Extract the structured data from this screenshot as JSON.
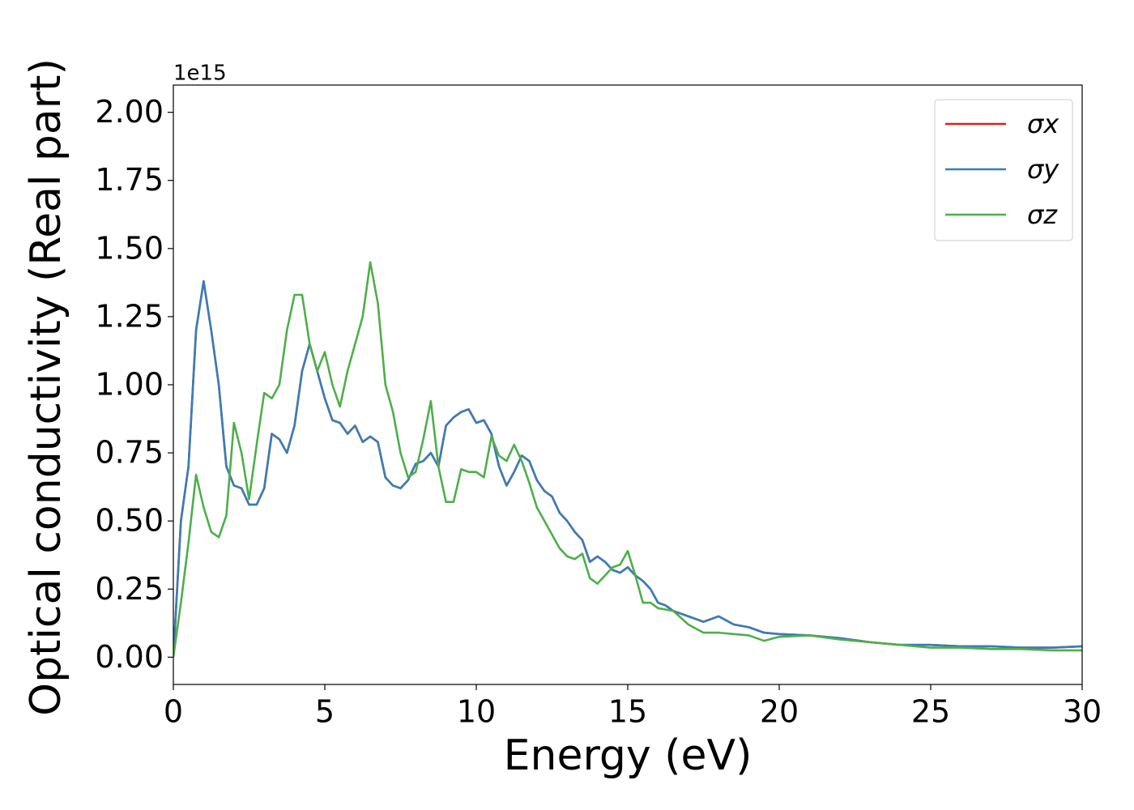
{
  "chart_data": {
    "type": "line",
    "xlabel": "Energy (eV)",
    "ylabel": "Optical conductivity (Real part)",
    "y_offset_label": "1e15",
    "xlim": [
      0,
      30
    ],
    "ylim": [
      -0.1,
      2.1
    ],
    "xticks": [
      0,
      5,
      10,
      15,
      20,
      25,
      30
    ],
    "yticks": [
      {
        "value": 0,
        "label": "0.00"
      },
      {
        "value": 0.25,
        "label": "0.25"
      },
      {
        "value": 0.5,
        "label": "0.50"
      },
      {
        "value": 0.75,
        "label": "0.75"
      },
      {
        "value": 1,
        "label": "1.00"
      },
      {
        "value": 1.25,
        "label": "1.25"
      },
      {
        "value": 1.5,
        "label": "1.50"
      },
      {
        "value": 1.75,
        "label": "1.75"
      },
      {
        "value": 2,
        "label": "2.00"
      }
    ],
    "legend": "upper right",
    "grid": false,
    "x": [
      0,
      0.25,
      0.5,
      0.75,
      1,
      1.25,
      1.5,
      1.75,
      2,
      2.25,
      2.5,
      2.75,
      3,
      3.25,
      3.5,
      3.75,
      4,
      4.25,
      4.5,
      4.75,
      5,
      5.25,
      5.5,
      5.75,
      6,
      6.25,
      6.5,
      6.75,
      7,
      7.25,
      7.5,
      7.75,
      8,
      8.25,
      8.5,
      8.75,
      9,
      9.25,
      9.5,
      9.75,
      10,
      10.25,
      10.5,
      10.75,
      11,
      11.25,
      11.5,
      11.75,
      12,
      12.25,
      12.5,
      12.75,
      13,
      13.25,
      13.5,
      13.75,
      14,
      14.25,
      14.5,
      14.75,
      15,
      15.25,
      15.5,
      15.75,
      16,
      16.25,
      16.5,
      17,
      17.5,
      18,
      18.5,
      19,
      19.5,
      20,
      21,
      22,
      23,
      24,
      25,
      26,
      27,
      28,
      29,
      30
    ],
    "series": [
      {
        "name": "σx",
        "color": "#e41a1c",
        "values": [
          0,
          0.5,
          0.7,
          1.2,
          1.38,
          1.2,
          1.0,
          0.7,
          0.63,
          0.62,
          0.56,
          0.56,
          0.62,
          0.82,
          0.8,
          0.75,
          0.85,
          1.05,
          1.15,
          1.05,
          0.95,
          0.87,
          0.86,
          0.82,
          0.85,
          0.79,
          0.81,
          0.79,
          0.66,
          0.63,
          0.62,
          0.65,
          0.71,
          0.72,
          0.75,
          0.7,
          0.85,
          0.88,
          0.9,
          0.91,
          0.86,
          0.87,
          0.82,
          0.7,
          0.63,
          0.68,
          0.74,
          0.72,
          0.65,
          0.61,
          0.59,
          0.53,
          0.5,
          0.46,
          0.43,
          0.35,
          0.37,
          0.35,
          0.32,
          0.31,
          0.33,
          0.3,
          0.28,
          0.25,
          0.2,
          0.19,
          0.17,
          0.15,
          0.13,
          0.15,
          0.12,
          0.11,
          0.09,
          0.085,
          0.08,
          0.07,
          0.055,
          0.045,
          0.045,
          0.04,
          0.04,
          0.035,
          0.035,
          0.04
        ]
      },
      {
        "name": "σy",
        "color": "#377eb8",
        "values": [
          0,
          0.5,
          0.7,
          1.2,
          1.38,
          1.2,
          1.0,
          0.7,
          0.63,
          0.62,
          0.56,
          0.56,
          0.62,
          0.82,
          0.8,
          0.75,
          0.85,
          1.05,
          1.15,
          1.05,
          0.95,
          0.87,
          0.86,
          0.82,
          0.85,
          0.79,
          0.81,
          0.79,
          0.66,
          0.63,
          0.62,
          0.65,
          0.71,
          0.72,
          0.75,
          0.7,
          0.85,
          0.88,
          0.9,
          0.91,
          0.86,
          0.87,
          0.82,
          0.7,
          0.63,
          0.68,
          0.74,
          0.72,
          0.65,
          0.61,
          0.59,
          0.53,
          0.5,
          0.46,
          0.43,
          0.35,
          0.37,
          0.35,
          0.32,
          0.31,
          0.33,
          0.3,
          0.28,
          0.25,
          0.2,
          0.19,
          0.17,
          0.15,
          0.13,
          0.15,
          0.12,
          0.11,
          0.09,
          0.085,
          0.08,
          0.07,
          0.055,
          0.045,
          0.045,
          0.04,
          0.04,
          0.035,
          0.035,
          0.04
        ]
      },
      {
        "name": "σz",
        "color": "#4daf4a",
        "values": [
          0,
          0.2,
          0.42,
          0.67,
          0.55,
          0.46,
          0.44,
          0.52,
          0.86,
          0.75,
          0.58,
          0.78,
          0.97,
          0.95,
          1.0,
          1.2,
          1.33,
          1.33,
          1.15,
          1.05,
          1.12,
          1.0,
          0.92,
          1.05,
          1.15,
          1.25,
          1.45,
          1.3,
          1.0,
          0.9,
          0.75,
          0.66,
          0.68,
          0.8,
          0.94,
          0.7,
          0.57,
          0.57,
          0.69,
          0.68,
          0.68,
          0.66,
          0.81,
          0.74,
          0.72,
          0.78,
          0.72,
          0.64,
          0.55,
          0.5,
          0.45,
          0.4,
          0.37,
          0.36,
          0.38,
          0.29,
          0.27,
          0.3,
          0.33,
          0.34,
          0.39,
          0.3,
          0.2,
          0.2,
          0.18,
          0.175,
          0.17,
          0.12,
          0.09,
          0.09,
          0.085,
          0.08,
          0.06,
          0.075,
          0.08,
          0.065,
          0.055,
          0.045,
          0.035,
          0.035,
          0.03,
          0.03,
          0.025,
          0.025
        ]
      }
    ]
  }
}
